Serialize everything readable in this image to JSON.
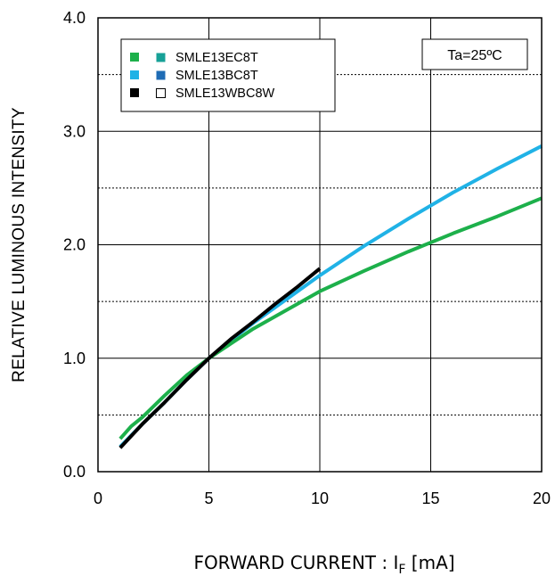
{
  "chart_data": {
    "type": "line",
    "title": "",
    "xlabel": {
      "main": "FORWARD CURRENT : I",
      "sub": "F",
      "unit": " [mA]"
    },
    "ylabel": "RELATIVE LUMINOUS INTENSITY",
    "xlim": [
      0,
      20
    ],
    "ylim": [
      0.0,
      4.0
    ],
    "x_ticks": [
      0,
      5,
      10,
      15,
      20
    ],
    "x_tick_labels": [
      "0",
      "5",
      "10",
      "15",
      "20"
    ],
    "y_ticks": [
      0.0,
      1.0,
      2.0,
      3.0,
      4.0
    ],
    "y_tick_labels": [
      "0.0",
      "1.0",
      "2.0",
      "3.0",
      "4.0"
    ],
    "minor_y_gridlines": [
      0.5,
      1.5,
      2.5,
      3.5
    ],
    "grid": true,
    "condition_label": "Ta=25ºC",
    "legend": {
      "position": "top-left",
      "entries": [
        {
          "label": "SMLE13EC8T",
          "marker1": "#1db04b",
          "marker2": "#17a197",
          "hollow2": false
        },
        {
          "label": "SMLE13BC8T",
          "marker1": "#20b2e6",
          "marker2": "#1f6cb5",
          "hollow2": false
        },
        {
          "label": "SMLE13WBC8W",
          "marker1": "#000000",
          "marker2": "#ffffff",
          "hollow2": true
        }
      ]
    },
    "series": [
      {
        "color": "#20b2e6",
        "x": [
          1,
          2,
          3,
          4,
          5,
          6,
          7,
          8,
          9,
          10,
          12,
          14,
          16,
          18,
          20
        ],
        "y": [
          0.22,
          0.42,
          0.61,
          0.81,
          1.0,
          1.16,
          1.31,
          1.45,
          1.59,
          1.73,
          1.99,
          2.23,
          2.46,
          2.67,
          2.87
        ]
      },
      {
        "color": "#1db04b",
        "x": [
          1,
          1.5,
          2,
          3,
          4,
          5,
          6,
          7,
          8,
          9,
          10,
          12,
          14,
          16,
          18,
          20
        ],
        "y": [
          0.29,
          0.4,
          0.48,
          0.67,
          0.85,
          1.0,
          1.13,
          1.26,
          1.37,
          1.48,
          1.59,
          1.77,
          1.94,
          2.1,
          2.25,
          2.41
        ]
      },
      {
        "color": "#000000",
        "x": [
          1,
          2,
          3,
          4,
          5,
          6,
          7,
          8,
          9,
          10
        ],
        "y": [
          0.21,
          0.42,
          0.61,
          0.81,
          1.0,
          1.17,
          1.32,
          1.48,
          1.63,
          1.79
        ]
      }
    ]
  }
}
